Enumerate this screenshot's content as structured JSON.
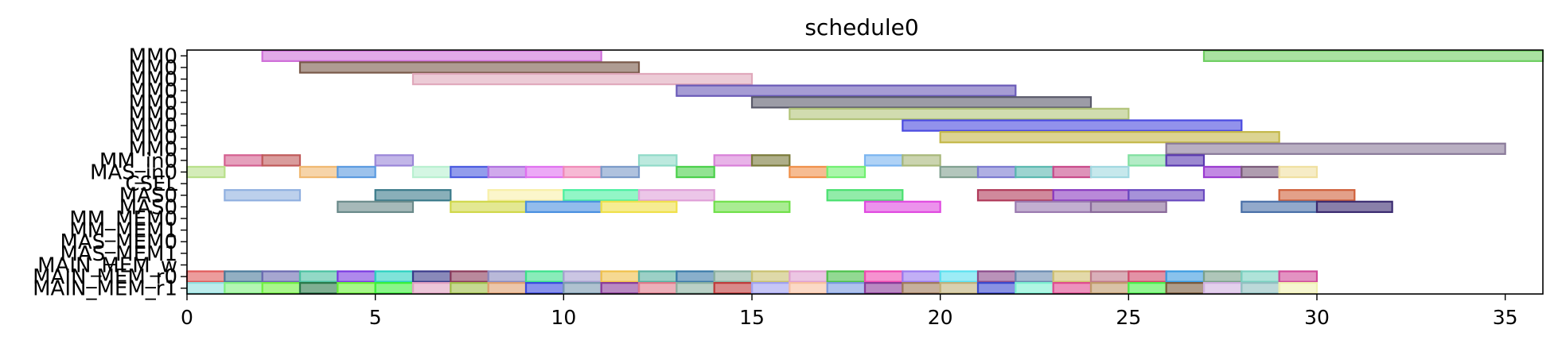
{
  "chart_data": {
    "type": "gantt",
    "title": "schedule0",
    "xlabel": "",
    "ylabel": "",
    "xlim": [
      0,
      36
    ],
    "xticks": [
      0,
      5,
      10,
      15,
      20,
      25,
      30,
      35
    ],
    "grid": false,
    "rows": [
      {
        "label": "MM0",
        "bars": [
          [
            2,
            11,
            "#cf6fd9"
          ],
          [
            27,
            36,
            "#6fcf62"
          ]
        ]
      },
      {
        "label": "MM0",
        "bars": [
          [
            3,
            12,
            "#7a5a4a"
          ]
        ]
      },
      {
        "label": "MM0",
        "bars": [
          [
            6,
            15,
            "#e0a8bb"
          ]
        ]
      },
      {
        "label": "MM0",
        "bars": [
          [
            13,
            22,
            "#6a5ab8"
          ]
        ]
      },
      {
        "label": "MM0",
        "bars": [
          [
            15,
            24,
            "#5a5a6a"
          ]
        ]
      },
      {
        "label": "MM0",
        "bars": [
          [
            16,
            25,
            "#b2c47a"
          ]
        ]
      },
      {
        "label": "MM0",
        "bars": [
          [
            19,
            28,
            "#4a4ae0"
          ]
        ]
      },
      {
        "label": "MM0",
        "bars": [
          [
            20,
            29,
            "#c4b84a"
          ]
        ]
      },
      {
        "label": "MM0",
        "bars": [
          [
            26,
            35,
            "#8a7a9a"
          ]
        ]
      },
      {
        "label": "MM_in0",
        "bars": [
          [
            1,
            2,
            "#d46090"
          ],
          [
            2,
            3,
            "#c05a5a"
          ],
          [
            5,
            6,
            "#9a86d8"
          ],
          [
            12,
            13,
            "#90dac8"
          ],
          [
            14,
            15,
            "#d880d8"
          ],
          [
            15,
            16,
            "#7a7a3a"
          ],
          [
            18,
            19,
            "#7ab4f0"
          ],
          [
            19,
            20,
            "#a8b87a"
          ],
          [
            25,
            26,
            "#80e0a0"
          ],
          [
            26,
            27,
            "#5a3ab0"
          ]
        ]
      },
      {
        "label": "MAS_in0",
        "bars": [
          [
            0,
            1,
            "#b8e08a"
          ],
          [
            3,
            4,
            "#f0b870"
          ],
          [
            4,
            5,
            "#5a9ae0"
          ],
          [
            6,
            7,
            "#b8f0d0"
          ],
          [
            7,
            8,
            "#4a5ae0"
          ],
          [
            8,
            9,
            "#b070e0"
          ],
          [
            9,
            10,
            "#e070f0"
          ],
          [
            10,
            11,
            "#f08ab8"
          ],
          [
            11,
            12,
            "#7a9ac8"
          ],
          [
            13,
            14,
            "#4ad04a"
          ],
          [
            16,
            17,
            "#f0904a"
          ],
          [
            17,
            18,
            "#70f070"
          ],
          [
            20,
            21,
            "#80a090"
          ],
          [
            21,
            22,
            "#7a7ad0"
          ],
          [
            22,
            23,
            "#5ab8b0"
          ],
          [
            23,
            24,
            "#c84a8a"
          ],
          [
            24,
            25,
            "#a0d8e0"
          ],
          [
            27,
            28,
            "#9a3ad0"
          ],
          [
            28,
            29,
            "#7a5a7a"
          ],
          [
            29,
            30,
            "#f0e0a0"
          ]
        ]
      },
      {
        "label": "CSEL",
        "bars": []
      },
      {
        "label": "MAS0",
        "bars": [
          [
            1,
            3,
            "#90b0e0"
          ],
          [
            5,
            7,
            "#3a7a8a"
          ],
          [
            8,
            10,
            "#f8f0a8"
          ],
          [
            10,
            12,
            "#4af0a0"
          ],
          [
            12,
            14,
            "#e0a0d8"
          ],
          [
            17,
            19,
            "#4ae070"
          ],
          [
            21,
            23,
            "#b03a5a"
          ],
          [
            23,
            25,
            "#8a3ac0"
          ],
          [
            25,
            27,
            "#6a4ac0"
          ],
          [
            29,
            31,
            "#d0603a"
          ]
        ]
      },
      {
        "label": "MAS0",
        "bars": [
          [
            4,
            6,
            "#6a8a8a"
          ],
          [
            7,
            9,
            "#d0d84a"
          ],
          [
            9,
            11,
            "#4a90e0"
          ],
          [
            11,
            13,
            "#f0e04a"
          ],
          [
            14,
            16,
            "#70e04a"
          ],
          [
            18,
            20,
            "#e04ae0"
          ],
          [
            22,
            24,
            "#9a7ab0"
          ],
          [
            24,
            26,
            "#8a6a9a"
          ],
          [
            28,
            30,
            "#4a70a8"
          ],
          [
            30,
            32,
            "#3a2a70"
          ]
        ]
      },
      {
        "label": "MM_MEM0",
        "bars": []
      },
      {
        "label": "MM_MEM1",
        "bars": []
      },
      {
        "label": "MAS_MEM0",
        "bars": []
      },
      {
        "label": "MAS_MEM1",
        "bars": []
      },
      {
        "label": "MAIN_MEM_w",
        "bars": []
      },
      {
        "label": "MAIN_MEM_r0",
        "bars": [
          [
            0,
            1,
            "#e05a5a"
          ],
          [
            1,
            2,
            "#4a7a9a"
          ],
          [
            2,
            3,
            "#6a6ab0"
          ],
          [
            3,
            4,
            "#4ac0a0"
          ],
          [
            4,
            5,
            "#7a3ae0"
          ],
          [
            5,
            6,
            "#2ad0c0"
          ],
          [
            6,
            7,
            "#3a3a8a"
          ],
          [
            7,
            8,
            "#8a3a5a"
          ],
          [
            8,
            9,
            "#8a8ac0"
          ],
          [
            9,
            10,
            "#3ae08a"
          ],
          [
            10,
            11,
            "#a8a0d0"
          ],
          [
            11,
            12,
            "#f0c04a"
          ],
          [
            12,
            13,
            "#5ab0a0"
          ],
          [
            13,
            14,
            "#3a7aa8"
          ],
          [
            14,
            15,
            "#8ab0a0"
          ],
          [
            15,
            16,
            "#c8c070"
          ],
          [
            16,
            17,
            "#e0a0d0"
          ],
          [
            17,
            18,
            "#4ac04a"
          ],
          [
            18,
            19,
            "#f04ab0"
          ],
          [
            19,
            20,
            "#9a7af0"
          ],
          [
            20,
            21,
            "#5ae0f0"
          ],
          [
            21,
            22,
            "#8a4a8a"
          ],
          [
            22,
            23,
            "#6a8ab0"
          ],
          [
            23,
            24,
            "#d0c070"
          ],
          [
            24,
            25,
            "#c07a8a"
          ],
          [
            25,
            26,
            "#d04a6a"
          ],
          [
            26,
            27,
            "#3a9ae0"
          ],
          [
            27,
            28,
            "#7aa08a"
          ],
          [
            28,
            29,
            "#7ad0c0"
          ],
          [
            29,
            30,
            "#d04a9a"
          ]
        ]
      },
      {
        "label": "MAIN_MEM_r1",
        "bars": [
          [
            0,
            1,
            "#90e0e0"
          ],
          [
            1,
            2,
            "#80f080"
          ],
          [
            2,
            3,
            "#70f040"
          ],
          [
            3,
            4,
            "#2a7a4a"
          ],
          [
            4,
            5,
            "#6af03a"
          ],
          [
            5,
            6,
            "#3af03a"
          ],
          [
            6,
            7,
            "#e0a0c0"
          ],
          [
            7,
            8,
            "#a0c04a"
          ],
          [
            8,
            9,
            "#e0a070"
          ],
          [
            9,
            10,
            "#3a4ae0"
          ],
          [
            10,
            11,
            "#7a9ab0"
          ],
          [
            11,
            12,
            "#8a3a9a"
          ],
          [
            12,
            13,
            "#e07a8a"
          ],
          [
            13,
            14,
            "#8ab0a0"
          ],
          [
            14,
            15,
            "#c03a3a"
          ],
          [
            15,
            16,
            "#a0a0f0"
          ],
          [
            16,
            17,
            "#f8c0a0"
          ],
          [
            17,
            18,
            "#7a9ae0"
          ],
          [
            18,
            19,
            "#8a3a9a"
          ],
          [
            19,
            20,
            "#a07a5a"
          ],
          [
            20,
            21,
            "#c0b07a"
          ],
          [
            21,
            22,
            "#3a4ad0"
          ],
          [
            22,
            23,
            "#7af0d0"
          ],
          [
            23,
            24,
            "#e04a90"
          ],
          [
            24,
            25,
            "#c09a6a"
          ],
          [
            25,
            26,
            "#4af04a"
          ],
          [
            26,
            27,
            "#7a5a3a"
          ],
          [
            27,
            28,
            "#d0b0e0"
          ],
          [
            28,
            29,
            "#90c0c0"
          ],
          [
            29,
            30,
            "#f0f0b0"
          ]
        ]
      }
    ]
  }
}
